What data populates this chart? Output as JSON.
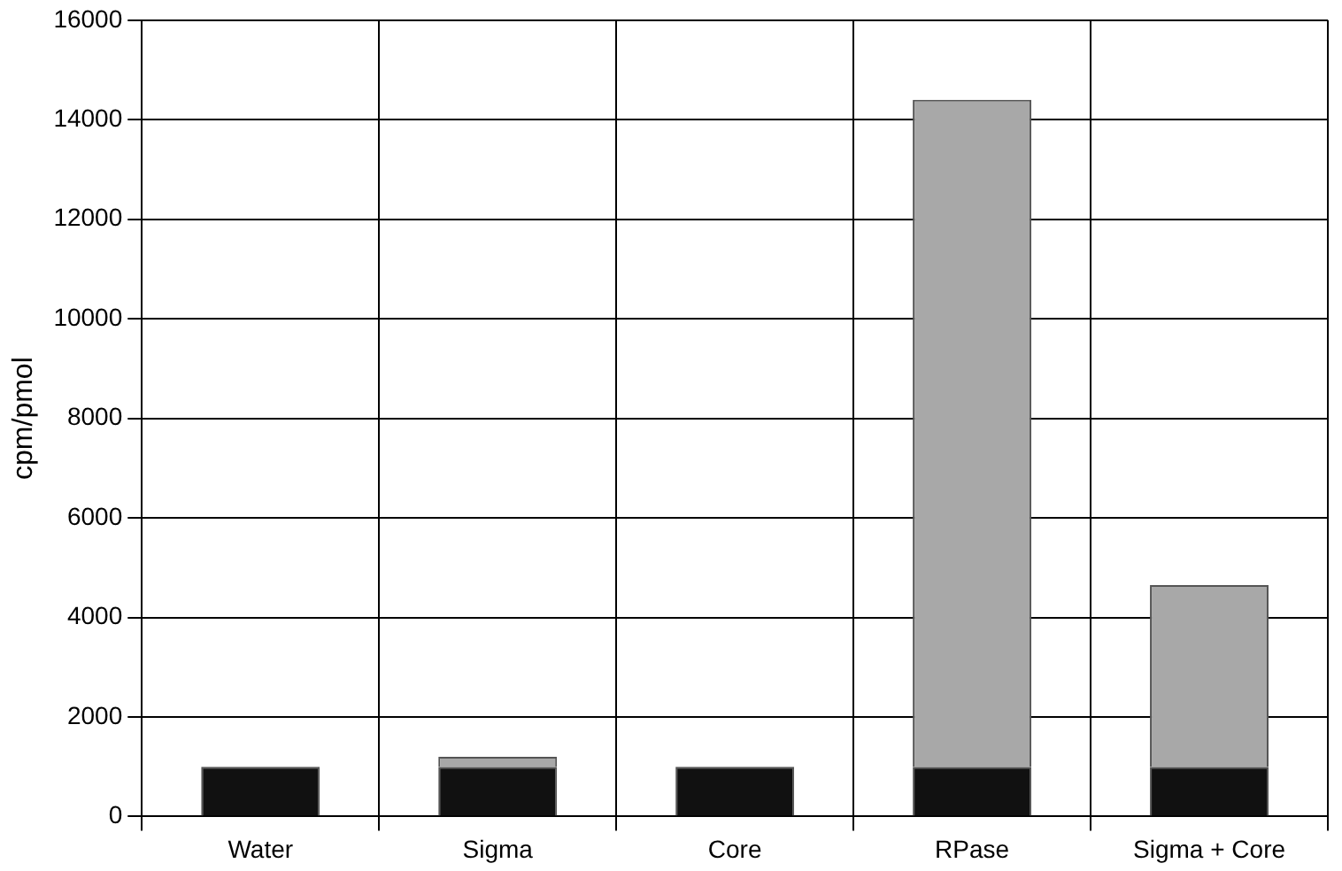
{
  "chart_data": {
    "type": "bar",
    "stacked": true,
    "ylabel": "cpm/pmol",
    "categories": [
      "Water",
      "Sigma",
      "Core",
      "RPase",
      "Sigma + Core"
    ],
    "series": [
      {
        "color": "#111111",
        "values": [
          1000,
          1000,
          1000,
          1000,
          1000
        ]
      },
      {
        "color": "#a8a8a8",
        "values": [
          0,
          200,
          0,
          13400,
          3650
        ]
      }
    ],
    "ylim": [
      0,
      16000
    ],
    "yticks": [
      0,
      2000,
      4000,
      6000,
      8000,
      10000,
      12000,
      14000,
      16000
    ],
    "grid": true,
    "legend": false
  }
}
